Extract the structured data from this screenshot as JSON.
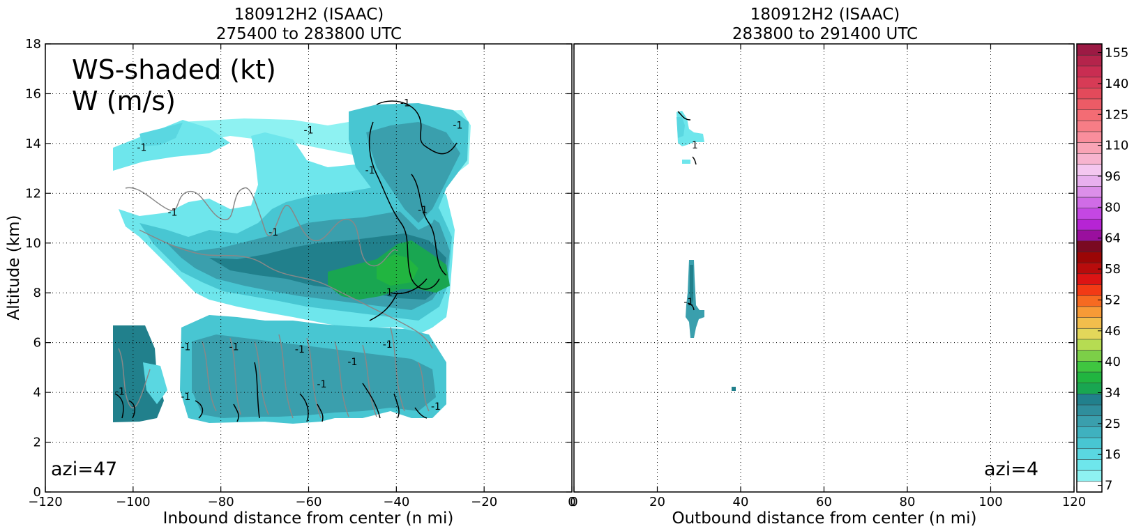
{
  "chart_data": [
    {
      "type": "heatmap",
      "title": "180912H2 (ISAAC)",
      "subtitle": "275400 to 283800 UTC",
      "xlabel": "Inbound distance from center (n mi)",
      "ylabel": "Altitude (km)",
      "xlim": [
        -120,
        0
      ],
      "ylim": [
        0,
        18
      ],
      "xticks": [
        "−120",
        "−100",
        "−80",
        "−60",
        "−40",
        "−20",
        "0"
      ],
      "xtick_values": [
        -120,
        -100,
        -80,
        -60,
        -40,
        -20,
        0
      ],
      "yticks": [
        "0",
        "2",
        "4",
        "6",
        "8",
        "10",
        "12",
        "14",
        "16",
        "18"
      ],
      "ytick_values": [
        0,
        2,
        4,
        6,
        8,
        10,
        12,
        14,
        16,
        18
      ],
      "grid": true,
      "legend_text": [
        "WS-shaded (kt)",
        "W (m/s)"
      ],
      "annotation": "azi=47",
      "contour_labels": [
        {
          "text": "-1",
          "x": -98,
          "y": 13.7
        },
        {
          "text": "-1",
          "x": -91,
          "y": 11.1
        },
        {
          "text": "-1",
          "x": -68,
          "y": 10.3
        },
        {
          "text": "-1",
          "x": -60,
          "y": 14.4
        },
        {
          "text": "-1",
          "x": -38,
          "y": 15.5
        },
        {
          "text": "-1",
          "x": -46,
          "y": 12.8
        },
        {
          "text": "-1",
          "x": -34,
          "y": 11.2
        },
        {
          "text": "-1",
          "x": -26,
          "y": 14.6
        },
        {
          "text": "-1",
          "x": -42,
          "y": 7.9
        },
        {
          "text": "-1",
          "x": -88,
          "y": 5.7
        },
        {
          "text": "-1",
          "x": -77,
          "y": 5.7
        },
        {
          "text": "-1",
          "x": -62,
          "y": 5.6
        },
        {
          "text": "-1",
          "x": -50,
          "y": 5.1
        },
        {
          "text": "-1",
          "x": -42,
          "y": 5.8
        },
        {
          "text": "-1",
          "x": -103,
          "y": 3.9
        },
        {
          "text": "-1",
          "x": -88,
          "y": 3.7
        },
        {
          "text": "-1",
          "x": -57,
          "y": 4.2
        },
        {
          "text": "-1",
          "x": -31,
          "y": 3.3
        }
      ]
    },
    {
      "type": "heatmap",
      "title": "180912H2 (ISAAC)",
      "subtitle": "283800 to 291400 UTC",
      "xlabel": "Outbound distance from center (n mi)",
      "xlim": [
        0,
        120
      ],
      "ylim": [
        0,
        18
      ],
      "xticks": [
        "0",
        "20",
        "40",
        "60",
        "80",
        "100",
        "120"
      ],
      "xtick_values": [
        0,
        20,
        40,
        60,
        80,
        100,
        120
      ],
      "grid": true,
      "annotation": "azi=4",
      "contour_labels": [
        {
          "text": "1",
          "x": 29,
          "y": 13.8
        },
        {
          "text": "-1",
          "x": 27.5,
          "y": 7.5
        }
      ]
    }
  ],
  "colorbar": {
    "label_values": [
      "7",
      "16",
      "25",
      "34",
      "40",
      "46",
      "52",
      "58",
      "64",
      "80",
      "96",
      "110",
      "125",
      "140",
      "155"
    ],
    "colors": [
      "#ffffff",
      "#8ef2f2",
      "#6ee6ec",
      "#5ad7e1",
      "#48c6d2",
      "#3fb1bf",
      "#3a9fad",
      "#2f8e9c",
      "#21808c",
      "#19a651",
      "#21b540",
      "#3fc640",
      "#7ccf48",
      "#b6dc52",
      "#e3d75a",
      "#f2be4c",
      "#f79a36",
      "#f66a21",
      "#f23a15",
      "#dc1414",
      "#b80c0c",
      "#9b0606",
      "#7a0a22",
      "#9a0f9e",
      "#b624d4",
      "#c447e3",
      "#d06ce6",
      "#dc8fe9",
      "#e8b0ee",
      "#f4c7f0",
      "#f7b4cf",
      "#f9a4b6",
      "#f98e9c",
      "#f77d86",
      "#f36c74",
      "#ec5b66",
      "#e34a5b",
      "#d73b56",
      "#c92d52",
      "#b4244b",
      "#9c1a44"
    ]
  }
}
